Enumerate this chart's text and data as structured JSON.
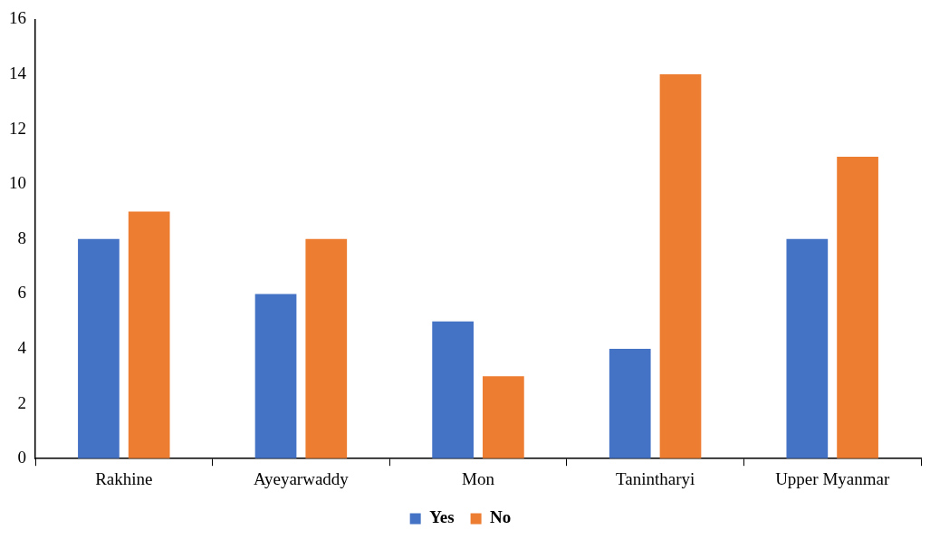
{
  "chart_data": {
    "type": "bar",
    "categories": [
      "Rakhine",
      "Ayeyarwaddy",
      "Mon",
      "Tanintharyi",
      "Upper Myanmar"
    ],
    "series": [
      {
        "name": "Yes",
        "color": "#4472c4",
        "values": [
          8,
          6,
          5,
          4,
          8
        ]
      },
      {
        "name": "No",
        "color": "#ed7d31",
        "values": [
          9,
          8,
          3,
          14,
          11
        ]
      }
    ],
    "ylim": [
      0,
      16
    ],
    "yticks": [
      0,
      2,
      4,
      6,
      8,
      10,
      12,
      14,
      16
    ],
    "grid": false,
    "legend": "bottom"
  }
}
